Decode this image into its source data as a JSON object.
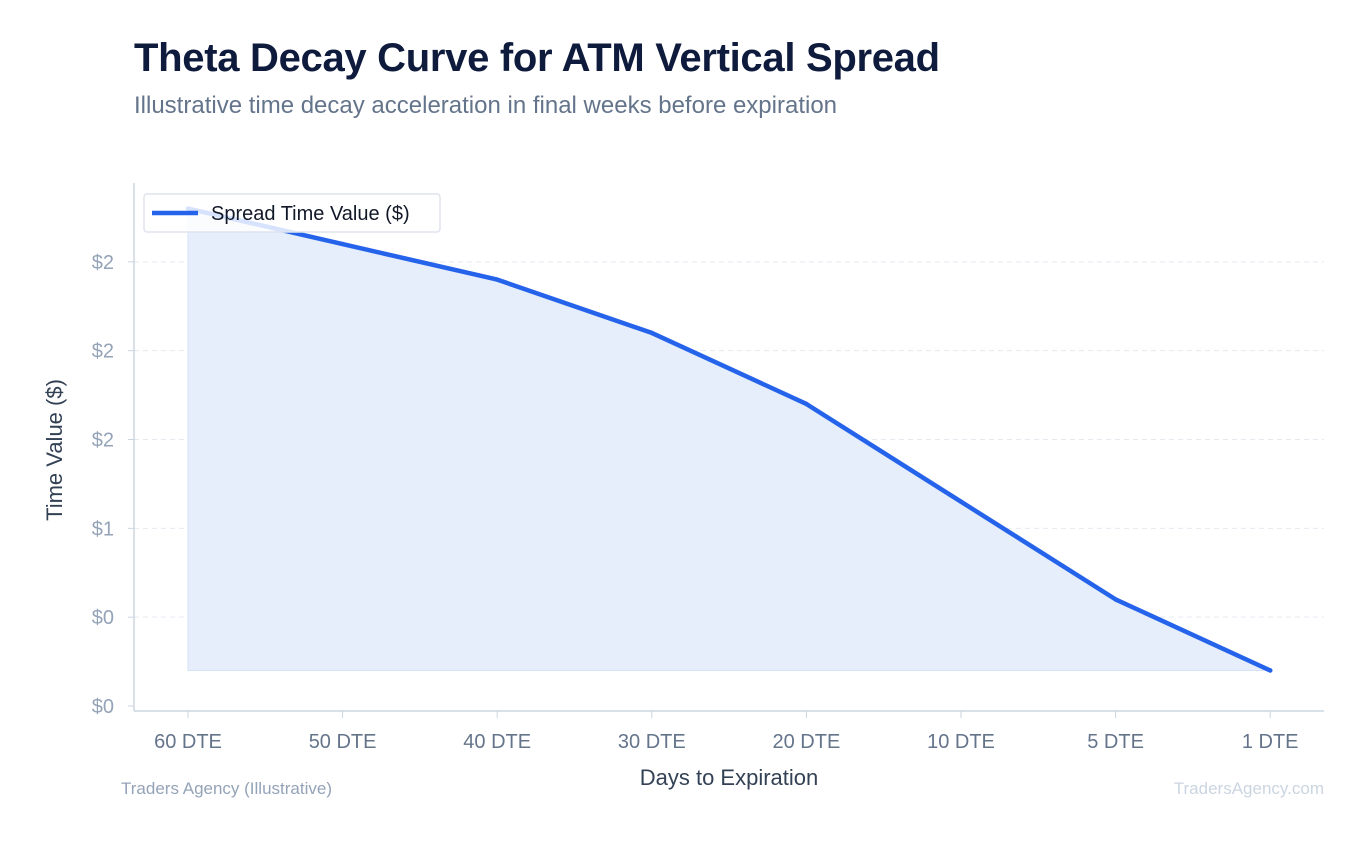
{
  "title": "Theta Decay Curve for ATM Vertical Spread",
  "subtitle": "Illustrative time decay acceleration in final weeks before expiration",
  "footer": {
    "source": "Traders Agency (Illustrative)",
    "watermark": "TradersAgency.com"
  },
  "colors": {
    "line": "#2563eb",
    "fill": "#e5eefa",
    "grid": "#e5e9f0",
    "axis": "#cbd5e1",
    "tick_label": "#94a3b8",
    "xtick_label": "#64748b",
    "axis_label": "#334155"
  },
  "chart_data": {
    "type": "area",
    "title": "Theta Decay Curve for ATM Vertical Spread",
    "subtitle": "Illustrative time decay acceleration in final weeks before expiration",
    "xlabel": "Days to Expiration",
    "ylabel": "Time Value ($)",
    "categories": [
      "60 DTE",
      "50 DTE",
      "40 DTE",
      "30 DTE",
      "20 DTE",
      "10 DTE",
      "5 DTE",
      "1 DTE"
    ],
    "series": [
      {
        "name": "Spread Time Value ($)",
        "values": [
          2.8,
          2.6,
          2.4,
          2.1,
          1.7,
          1.15,
          0.6,
          0.2
        ]
      }
    ],
    "ylim": [
      0,
      3.0
    ],
    "yticks": [
      0,
      0.5,
      1.0,
      1.5,
      2.0,
      2.5
    ],
    "ytick_labels": [
      "$0",
      "$0",
      "$1",
      "$2",
      "$2",
      "$2"
    ],
    "grid": true,
    "legend": "top-left"
  }
}
